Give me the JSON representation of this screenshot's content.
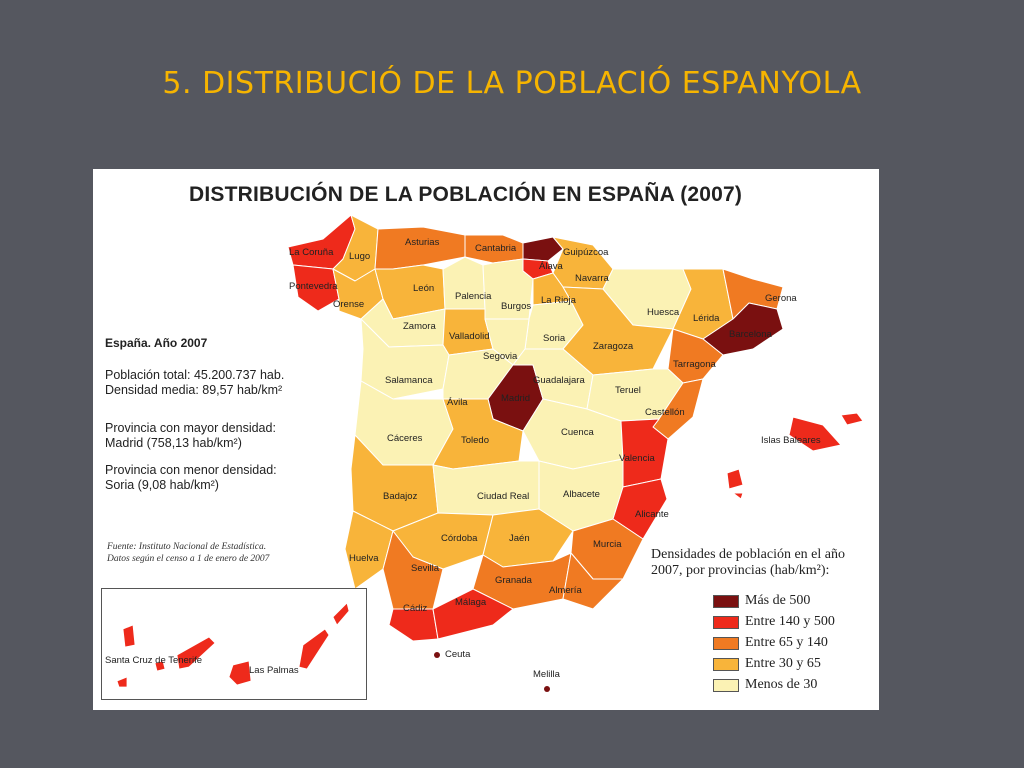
{
  "slide": {
    "title": "5. DISTRIBUCIÓ DE LA POBLACIÓ ESPANYOLA"
  },
  "map": {
    "title": "DISTRIBUCIÓN DE LA POBLACIÓN EN ESPAÑA (2007)",
    "info": {
      "heading": "España. Año 2007",
      "population": "Población total: 45.200.737 hab.",
      "mean_density": "Densidad media: 89,57 hab/km²",
      "max_label": "Provincia con mayor densidad:",
      "max_value": "Madrid (758,13 hab/km²)",
      "min_label": "Provincia con menor densidad:",
      "min_value": "Soria (9,08 hab/km²)"
    },
    "source": {
      "line1": "Fuente: Instituto Nacional de Estadística.",
      "line2": "Datos según el censo a 1 de enero de 2007"
    },
    "legend": {
      "title_line1": "Densidades de población en el año",
      "title_line2": "2007, por provincias (hab/km²):",
      "items": [
        {
          "label": "Más de 500",
          "color": "#7a1010"
        },
        {
          "label": "Entre 140 y 500",
          "color": "#ee2a1b"
        },
        {
          "label": "Entre 65 y 140",
          "color": "#f07a22"
        },
        {
          "label": "Entre 30 y 65",
          "color": "#f8b43a"
        },
        {
          "label": "Menos de 30",
          "color": "#fbf2b4"
        }
      ]
    },
    "provinces": {
      "la_coruna": "La Coruña",
      "lugo": "Lugo",
      "asturias": "Asturias",
      "cantabria": "Cantabria",
      "guipuzcoa": "Guipúzcoa",
      "alava": "Álava",
      "navarra": "Navarra",
      "pontevedra": "Pontevedra",
      "orense": "Orense",
      "leon": "León",
      "palencia": "Palencia",
      "burgos": "Burgos",
      "la_rioja": "La Rioja",
      "huesca": "Huesca",
      "gerona": "Gerona",
      "lerida": "Lérida",
      "barcelona": "Barcelona",
      "zamora": "Zamora",
      "valladolid": "Valladolid",
      "soria": "Soria",
      "zaragoza": "Zaragoza",
      "tarragona": "Tarragona",
      "segovia": "Segovia",
      "salamanca": "Salamanca",
      "guadalajara": "Guadalajara",
      "teruel": "Teruel",
      "avila": "Ávila",
      "madrid": "Madrid",
      "castellon": "Castellón",
      "caceres": "Cáceres",
      "toledo": "Toledo",
      "cuenca": "Cuenca",
      "valencia": "Valencia",
      "badajoz": "Badajoz",
      "ciudad_real": "Ciudad Real",
      "albacete": "Albacete",
      "alicante": "Alicante",
      "cordoba": "Córdoba",
      "jaen": "Jaén",
      "murcia": "Murcia",
      "huelva": "Huelva",
      "sevilla": "Sevilla",
      "granada": "Granada",
      "almeria": "Almería",
      "cadiz": "Cádiz",
      "malaga": "Málaga",
      "ceuta": "Ceuta",
      "melilla": "Melilla",
      "baleares": "Islas Baleares",
      "tenerife": "Santa Cruz de Tenerife",
      "las_palmas": "Las Palmas"
    }
  }
}
